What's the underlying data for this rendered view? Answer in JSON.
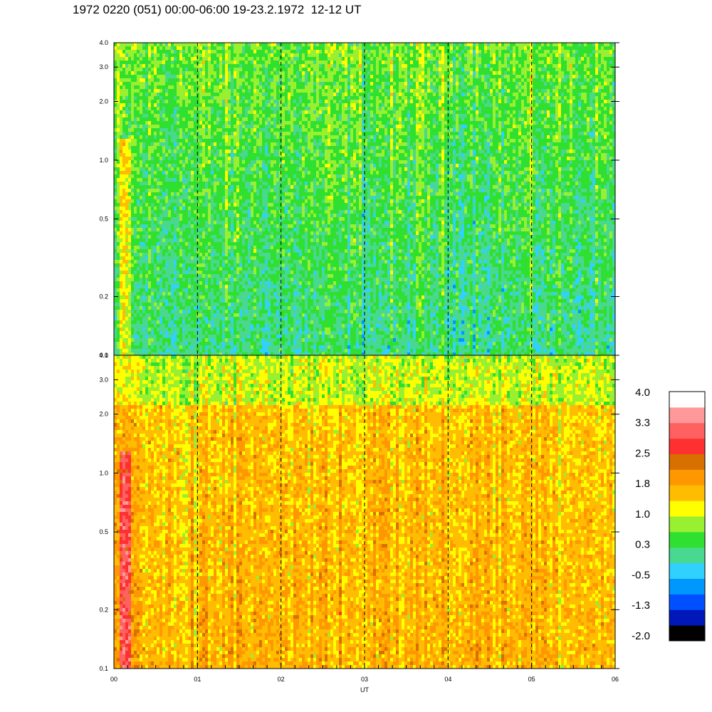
{
  "title": "1972 0220 (051) 00:00-06:00 19-23.2.1972  12-12 UT",
  "chart_data": [
    {
      "type": "heatmap",
      "name": "upper-panel",
      "y_scale": "log",
      "ylim": [
        0.1,
        4.0
      ],
      "xlim": [
        0,
        6
      ],
      "y_ticks": [
        "0.1",
        "0.2",
        "0.5",
        "1.0",
        "2.0",
        "3.0",
        "4.0"
      ],
      "y_tick_values": [
        0.1,
        0.2,
        0.5,
        1.0,
        2.0,
        3.0,
        4.0
      ],
      "dashed_gridlines_x": [
        1,
        2,
        3,
        4,
        5
      ],
      "typical_value": 0.3
    },
    {
      "type": "heatmap",
      "name": "lower-panel",
      "y_scale": "log",
      "ylim": [
        0.1,
        4.0
      ],
      "xlim": [
        0,
        6
      ],
      "y_ticks": [
        "0.1",
        "0.2",
        "0.5",
        "1.0",
        "2.0",
        "3.0",
        "4.0"
      ],
      "y_tick_values": [
        0.1,
        0.2,
        0.5,
        1.0,
        2.0,
        3.0,
        4.0
      ],
      "dashed_gridlines_x": [
        1,
        2,
        3,
        4,
        5
      ],
      "typical_value": 1.6
    }
  ],
  "x_axis": {
    "label": "UT",
    "ticks": [
      "00",
      "01",
      "02",
      "03",
      "04",
      "05",
      "06"
    ],
    "tick_values": [
      0,
      1,
      2,
      3,
      4,
      5,
      6
    ]
  },
  "colorbar": {
    "labels": [
      "4.0",
      "3.3",
      "2.5",
      "1.8",
      "1.0",
      "0.3",
      "-0.5",
      "-1.3",
      "-2.0"
    ],
    "colors": [
      "#000000",
      "#0018b8",
      "#0050ff",
      "#0098ff",
      "#30d0ff",
      "#48d890",
      "#30e030",
      "#98f030",
      "#ffff00",
      "#ffbc00",
      "#ff9800",
      "#d87000",
      "#ff3030",
      "#ff6060",
      "#ff9898",
      "#ffffff"
    ]
  }
}
